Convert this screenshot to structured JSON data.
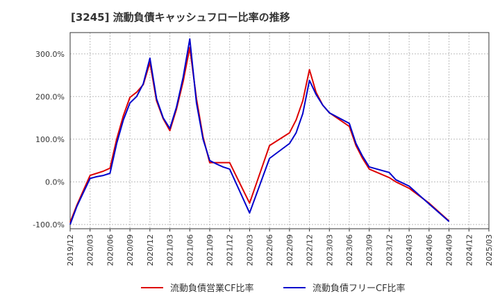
{
  "chart_data": {
    "type": "line",
    "title": "[3245]  流動負債キャッシュフロー比率の推移",
    "xlabel": "",
    "ylabel": "",
    "ylim": [
      -110,
      350
    ],
    "y_ticks": [
      -100,
      0,
      100,
      200,
      300
    ],
    "y_tick_labels": [
      "-100.0%",
      "0.0%",
      "100.0%",
      "200.0%",
      "300.0%"
    ],
    "x_tick_labels": [
      "2019/12",
      "2020/03",
      "2020/06",
      "2020/09",
      "2020/12",
      "2021/03",
      "2021/06",
      "2021/09",
      "2021/12",
      "2022/03",
      "2022/06",
      "2022/09",
      "2022/12",
      "2023/03",
      "2023/06",
      "2023/09",
      "2023/12",
      "2024/03",
      "2024/06",
      "2024/09",
      "2024/12",
      "2025/03"
    ],
    "x_range": [
      "2019-12",
      "2025-03"
    ],
    "grid": true,
    "legend_position": "bottom",
    "colors": {
      "series1": "#dd0000",
      "series2": "#0000cc",
      "grid": "#bbbbbb",
      "axis": "#333333"
    },
    "series": [
      {
        "name": "流動負債営業CF比率",
        "color": "#dd0000",
        "points": [
          [
            "2019-12",
            -95
          ],
          [
            "2020-01",
            -55
          ],
          [
            "2020-02",
            -20
          ],
          [
            "2020-03",
            15
          ],
          [
            "2020-04",
            20
          ],
          [
            "2020-05",
            25
          ],
          [
            "2020-06",
            32
          ],
          [
            "2020-07",
            100
          ],
          [
            "2020-08",
            155
          ],
          [
            "2020-09",
            198
          ],
          [
            "2020-10",
            210
          ],
          [
            "2020-11",
            228
          ],
          [
            "2020-12",
            280
          ],
          [
            "2021-01",
            190
          ],
          [
            "2021-02",
            148
          ],
          [
            "2021-03",
            120
          ],
          [
            "2021-04",
            170
          ],
          [
            "2021-05",
            235
          ],
          [
            "2021-06",
            315
          ],
          [
            "2021-07",
            195
          ],
          [
            "2021-08",
            105
          ],
          [
            "2021-09",
            45
          ],
          [
            "2021-10",
            45
          ],
          [
            "2021-11",
            45
          ],
          [
            "2021-12",
            45
          ],
          [
            "2022-03",
            -50
          ],
          [
            "2022-06",
            85
          ],
          [
            "2022-09",
            115
          ],
          [
            "2022-10",
            145
          ],
          [
            "2022-11",
            190
          ],
          [
            "2022-12",
            263
          ],
          [
            "2023-01",
            210
          ],
          [
            "2023-02",
            180
          ],
          [
            "2023-03",
            162
          ],
          [
            "2023-06",
            130
          ],
          [
            "2023-07",
            85
          ],
          [
            "2023-08",
            55
          ],
          [
            "2023-09",
            30
          ],
          [
            "2023-12",
            10
          ],
          [
            "2024-01",
            0
          ],
          [
            "2024-03",
            -15
          ],
          [
            "2024-06",
            -50
          ],
          [
            "2024-09",
            -92
          ]
        ]
      },
      {
        "name": "流動負債フリーCF比率",
        "color": "#0000cc",
        "points": [
          [
            "2019-12",
            -100
          ],
          [
            "2020-01",
            -58
          ],
          [
            "2020-02",
            -25
          ],
          [
            "2020-03",
            8
          ],
          [
            "2020-04",
            12
          ],
          [
            "2020-05",
            15
          ],
          [
            "2020-06",
            20
          ],
          [
            "2020-07",
            90
          ],
          [
            "2020-08",
            145
          ],
          [
            "2020-09",
            185
          ],
          [
            "2020-10",
            200
          ],
          [
            "2020-11",
            230
          ],
          [
            "2020-12",
            290
          ],
          [
            "2021-01",
            195
          ],
          [
            "2021-02",
            150
          ],
          [
            "2021-03",
            125
          ],
          [
            "2021-04",
            175
          ],
          [
            "2021-05",
            245
          ],
          [
            "2021-06",
            335
          ],
          [
            "2021-07",
            185
          ],
          [
            "2021-08",
            100
          ],
          [
            "2021-09",
            50
          ],
          [
            "2021-10",
            42
          ],
          [
            "2021-11",
            35
          ],
          [
            "2021-12",
            30
          ],
          [
            "2022-03",
            -73
          ],
          [
            "2022-06",
            55
          ],
          [
            "2022-09",
            90
          ],
          [
            "2022-10",
            115
          ],
          [
            "2022-11",
            160
          ],
          [
            "2022-12",
            238
          ],
          [
            "2023-01",
            205
          ],
          [
            "2023-02",
            180
          ],
          [
            "2023-03",
            162
          ],
          [
            "2023-06",
            137
          ],
          [
            "2023-07",
            90
          ],
          [
            "2023-08",
            60
          ],
          [
            "2023-09",
            35
          ],
          [
            "2023-12",
            22
          ],
          [
            "2024-01",
            5
          ],
          [
            "2024-03",
            -10
          ],
          [
            "2024-06",
            -52
          ],
          [
            "2024-09",
            -93
          ]
        ]
      }
    ]
  }
}
